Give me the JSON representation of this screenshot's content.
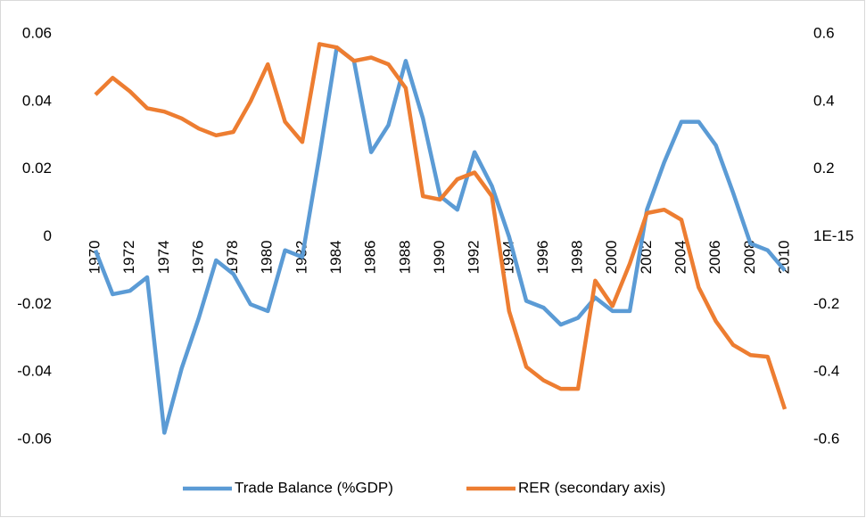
{
  "chart_data": {
    "type": "line",
    "categories": [
      "1970",
      null,
      "1972",
      null,
      "1974",
      null,
      "1976",
      null,
      "1978",
      null,
      "1980",
      null,
      "1982",
      null,
      "1984",
      null,
      "1986",
      null,
      "1988",
      null,
      "1990",
      null,
      "1992",
      null,
      "1994",
      null,
      "1996",
      null,
      "1998",
      null,
      "2000",
      null,
      "2002",
      null,
      "2004",
      null,
      "2006",
      null,
      "2008",
      null,
      "2010"
    ],
    "series": [
      {
        "name": "Trade Balance (%GDP)",
        "color": "#5b9bd5",
        "axis": "y",
        "values": [
          -0.004,
          -0.017,
          -0.016,
          -0.012,
          -0.058,
          -0.039,
          -0.024,
          -0.007,
          -0.011,
          -0.02,
          -0.022,
          -0.004,
          -0.006,
          0.024,
          0.056,
          0.052,
          0.025,
          0.033,
          0.052,
          0.035,
          0.012,
          0.008,
          0.025,
          0.015,
          0.0,
          -0.019,
          -0.021,
          -0.026,
          -0.024,
          -0.018,
          -0.022,
          -0.022,
          0.008,
          0.022,
          0.034,
          0.034,
          0.027,
          0.013,
          -0.002,
          -0.004,
          -0.01
        ]
      },
      {
        "name": "RER (secondary axis)",
        "color": "#ed7d31",
        "axis": "y2",
        "values": [
          0.42,
          0.47,
          0.43,
          0.38,
          0.37,
          0.35,
          0.32,
          0.3,
          0.31,
          0.4,
          0.51,
          0.34,
          0.28,
          0.57,
          0.56,
          0.52,
          0.53,
          0.51,
          0.44,
          0.12,
          0.11,
          0.17,
          0.19,
          0.12,
          -0.22,
          -0.385,
          -0.425,
          -0.45,
          -0.45,
          -0.13,
          -0.205,
          -0.08,
          0.07,
          0.08,
          0.05,
          -0.15,
          -0.25,
          -0.32,
          -0.35,
          -0.355,
          -0.51
        ]
      }
    ],
    "ylim": [
      -0.06,
      0.06
    ],
    "yticks": [
      -0.06,
      -0.04,
      -0.02,
      0,
      0.02,
      0.04,
      0.06
    ],
    "y2lim": [
      -0.6,
      0.6
    ],
    "y2ticks": [
      -0.6,
      -0.4,
      -0.2,
      {
        "value": 1e-15,
        "label": "1E-15"
      },
      0.2,
      0.4,
      0.6
    ],
    "grid": false,
    "legend": "bottom"
  }
}
